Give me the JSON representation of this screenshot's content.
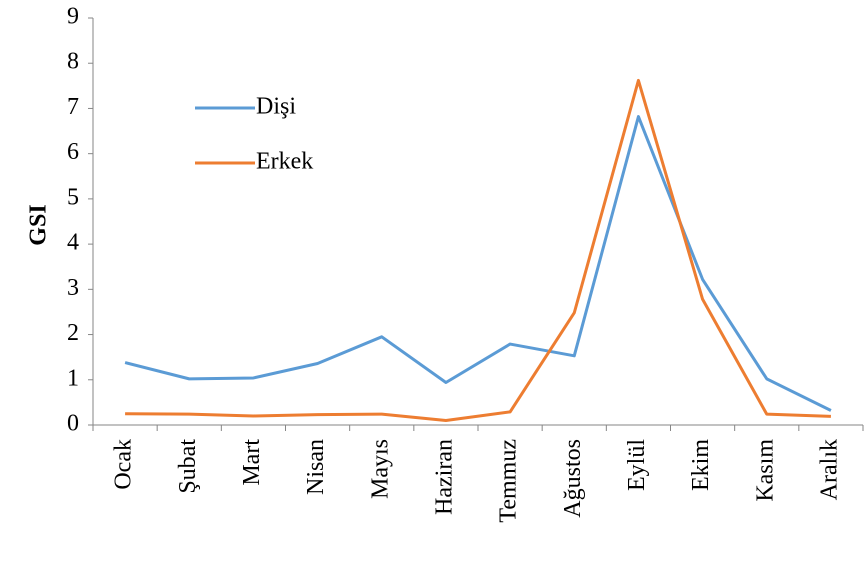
{
  "chart_data": {
    "type": "line",
    "y_label": "GSI",
    "categories": [
      "Ocak",
      "Şubat",
      "Mart",
      "Nisan",
      "Mayıs",
      "Haziran",
      "Temmuz",
      "Ağustos",
      "Eylül",
      "Ekim",
      "Kasım",
      "Aralık"
    ],
    "series": [
      {
        "name": "Dişi",
        "color": "#5b9bd5",
        "values": [
          1.38,
          1.02,
          1.04,
          1.36,
          1.95,
          0.94,
          1.79,
          1.53,
          6.82,
          3.22,
          1.02,
          0.32
        ]
      },
      {
        "name": "Erkek",
        "color": "#ed7d31",
        "values": [
          0.25,
          0.24,
          0.2,
          0.23,
          0.24,
          0.1,
          0.29,
          2.48,
          7.62,
          2.78,
          0.24,
          0.19
        ]
      }
    ],
    "ylim": [
      0,
      9
    ],
    "yticks": [
      0,
      1,
      2,
      3,
      4,
      5,
      6,
      7,
      8,
      9
    ],
    "grid": false,
    "legend": "upper left"
  }
}
